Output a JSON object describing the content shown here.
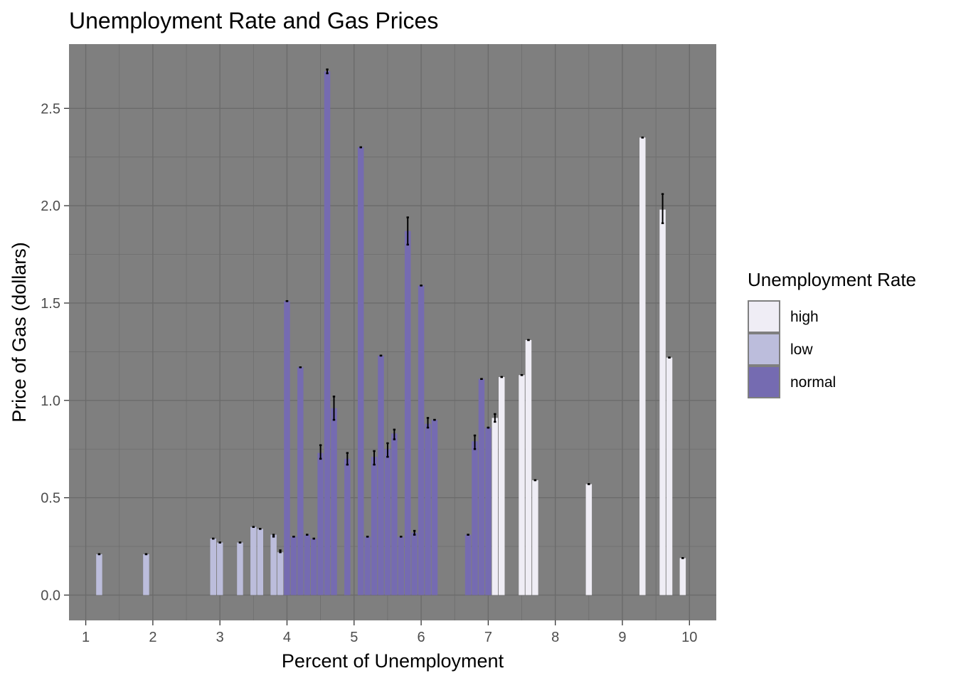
{
  "chart_data": {
    "type": "bar",
    "title": "Unemployment Rate and Gas Prices",
    "xlabel": "Percent of Unemployment",
    "ylabel": "Price of Gas (dollars)",
    "xlim": [
      0.75,
      10.4
    ],
    "ylim": [
      -0.13,
      2.83
    ],
    "x_ticks": [
      1,
      2,
      3,
      4,
      5,
      6,
      7,
      8,
      9,
      10
    ],
    "y_ticks": [
      0.0,
      0.5,
      1.0,
      1.5,
      2.0,
      2.5
    ],
    "y_tick_labels": [
      "0.0",
      "0.5",
      "1.0",
      "1.5",
      "2.0",
      "2.5"
    ],
    "grid": true,
    "legend": {
      "title": "Unemployment Rate",
      "position": "right",
      "entries": [
        {
          "label": "high",
          "color": "#efedf5"
        },
        {
          "label": "low",
          "color": "#bcbddc"
        },
        {
          "label": "normal",
          "color": "#756bb1"
        }
      ]
    },
    "colors": {
      "high": "#efedf5",
      "low": "#bcbddc",
      "normal": "#756bb1",
      "panel": "#7f7f7f",
      "grid": "#6b6b6b"
    },
    "bar_width": 0.09,
    "series": [
      {
        "category": "low",
        "points": [
          {
            "x": 1.2,
            "y": 0.21,
            "ymin": 0.21,
            "ymax": 0.21
          },
          {
            "x": 1.9,
            "y": 0.21,
            "ymin": 0.21,
            "ymax": 0.21
          },
          {
            "x": 2.9,
            "y": 0.29,
            "ymin": 0.29,
            "ymax": 0.29
          },
          {
            "x": 3.0,
            "y": 0.27,
            "ymin": 0.27,
            "ymax": 0.27
          },
          {
            "x": 3.3,
            "y": 0.27,
            "ymin": 0.27,
            "ymax": 0.27
          },
          {
            "x": 3.5,
            "y": 0.35,
            "ymin": 0.35,
            "ymax": 0.35
          },
          {
            "x": 3.6,
            "y": 0.34,
            "ymin": 0.34,
            "ymax": 0.34
          },
          {
            "x": 3.8,
            "y": 0.31,
            "ymin": 0.3,
            "ymax": 0.31
          },
          {
            "x": 3.9,
            "y": 0.22,
            "ymin": 0.22,
            "ymax": 0.23
          }
        ]
      },
      {
        "category": "normal",
        "points": [
          {
            "x": 4.0,
            "y": 1.51,
            "ymin": 1.51,
            "ymax": 1.51
          },
          {
            "x": 4.1,
            "y": 0.3,
            "ymin": 0.3,
            "ymax": 0.3
          },
          {
            "x": 4.2,
            "y": 1.17,
            "ymin": 1.17,
            "ymax": 1.17
          },
          {
            "x": 4.3,
            "y": 0.31,
            "ymin": 0.31,
            "ymax": 0.31
          },
          {
            "x": 4.4,
            "y": 0.29,
            "ymin": 0.29,
            "ymax": 0.29
          },
          {
            "x": 4.5,
            "y": 0.73,
            "ymin": 0.7,
            "ymax": 0.77
          },
          {
            "x": 4.6,
            "y": 2.69,
            "ymin": 2.68,
            "ymax": 2.7
          },
          {
            "x": 4.7,
            "y": 0.96,
            "ymin": 0.9,
            "ymax": 1.02
          },
          {
            "x": 4.9,
            "y": 0.7,
            "ymin": 0.67,
            "ymax": 0.73
          },
          {
            "x": 5.1,
            "y": 2.3,
            "ymin": 2.3,
            "ymax": 2.3
          },
          {
            "x": 5.2,
            "y": 0.3,
            "ymin": 0.3,
            "ymax": 0.3
          },
          {
            "x": 5.3,
            "y": 0.71,
            "ymin": 0.67,
            "ymax": 0.74
          },
          {
            "x": 5.4,
            "y": 1.23,
            "ymin": 1.23,
            "ymax": 1.23
          },
          {
            "x": 5.5,
            "y": 0.75,
            "ymin": 0.71,
            "ymax": 0.78
          },
          {
            "x": 5.6,
            "y": 0.83,
            "ymin": 0.8,
            "ymax": 0.85
          },
          {
            "x": 5.7,
            "y": 0.3,
            "ymin": 0.3,
            "ymax": 0.3
          },
          {
            "x": 5.8,
            "y": 1.87,
            "ymin": 1.8,
            "ymax": 1.94
          },
          {
            "x": 5.9,
            "y": 0.32,
            "ymin": 0.31,
            "ymax": 0.33
          },
          {
            "x": 6.0,
            "y": 1.59,
            "ymin": 1.59,
            "ymax": 1.59
          },
          {
            "x": 6.1,
            "y": 0.88,
            "ymin": 0.86,
            "ymax": 0.91
          },
          {
            "x": 6.2,
            "y": 0.9,
            "ymin": 0.9,
            "ymax": 0.9
          },
          {
            "x": 6.7,
            "y": 0.31,
            "ymin": 0.31,
            "ymax": 0.31
          },
          {
            "x": 6.8,
            "y": 0.79,
            "ymin": 0.75,
            "ymax": 0.82
          },
          {
            "x": 6.9,
            "y": 1.11,
            "ymin": 1.11,
            "ymax": 1.11
          },
          {
            "x": 7.0,
            "y": 0.86,
            "ymin": 0.86,
            "ymax": 0.86
          }
        ]
      },
      {
        "category": "high",
        "points": [
          {
            "x": 7.1,
            "y": 0.91,
            "ymin": 0.89,
            "ymax": 0.93
          },
          {
            "x": 7.2,
            "y": 1.12,
            "ymin": 1.12,
            "ymax": 1.12
          },
          {
            "x": 7.5,
            "y": 1.13,
            "ymin": 1.13,
            "ymax": 1.13
          },
          {
            "x": 7.6,
            "y": 1.31,
            "ymin": 1.31,
            "ymax": 1.31
          },
          {
            "x": 7.7,
            "y": 0.59,
            "ymin": 0.59,
            "ymax": 0.59
          },
          {
            "x": 8.5,
            "y": 0.57,
            "ymin": 0.57,
            "ymax": 0.57
          },
          {
            "x": 9.3,
            "y": 2.35,
            "ymin": 2.35,
            "ymax": 2.35
          },
          {
            "x": 9.6,
            "y": 1.98,
            "ymin": 1.91,
            "ymax": 2.06
          },
          {
            "x": 9.7,
            "y": 1.22,
            "ymin": 1.22,
            "ymax": 1.22
          },
          {
            "x": 9.9,
            "y": 0.19,
            "ymin": 0.19,
            "ymax": 0.19
          }
        ]
      }
    ]
  }
}
